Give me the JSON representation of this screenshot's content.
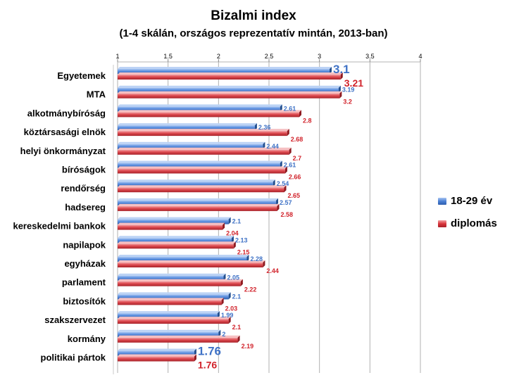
{
  "chart_data": {
    "type": "bar",
    "orientation": "horizontal",
    "title": "Bizalmi index",
    "subtitle": "(1-4 skálán, országos reprezentatív mintán, 2013-ban)",
    "xlim": [
      1,
      4
    ],
    "xticks": [
      "1",
      "1.5",
      "2",
      "2.5",
      "3",
      "3.5",
      "4"
    ],
    "grid": true,
    "legend_position": "right",
    "categories": [
      "Egyetemek",
      "MTA",
      "alkotmánybíróság",
      "köztársasági elnök",
      "helyi önkormányzat",
      "bíróságok",
      "rendőrség",
      "hadsereg",
      "kereskedelmi bankok",
      "napilapok",
      "egyházak",
      "parlament",
      "biztosítók",
      "szakszervezet",
      "kormány",
      "politikai pártok"
    ],
    "series": [
      {
        "name": "18-29 év",
        "color": "#4a7fd4",
        "values": [
          3.1,
          3.19,
          2.61,
          2.36,
          2.44,
          2.61,
          2.54,
          2.57,
          2.1,
          2.13,
          2.28,
          2.05,
          2.1,
          1.99,
          2,
          1.76
        ],
        "labels": [
          "3.1",
          "3.19",
          "2.61",
          "2.36",
          "2.44",
          "2.61",
          "2.54",
          "2.57",
          "2.1",
          "2.13",
          "2.28",
          "2.05",
          "2.1",
          "1.99",
          "2",
          "1.76"
        ]
      },
      {
        "name": "diplomás",
        "color": "#d9353b",
        "values": [
          3.21,
          3.2,
          2.8,
          2.68,
          2.7,
          2.66,
          2.65,
          2.58,
          2.04,
          2.15,
          2.44,
          2.22,
          2.03,
          2.1,
          2.19,
          1.76
        ],
        "labels": [
          "3.21",
          "3.2",
          "2.8",
          "2.68",
          "2.7",
          "2.66",
          "2.65",
          "2.58",
          "2.04",
          "2.15",
          "2.44",
          "2.22",
          "2.03",
          "2.1",
          "2.19",
          "1.76"
        ]
      }
    ]
  }
}
